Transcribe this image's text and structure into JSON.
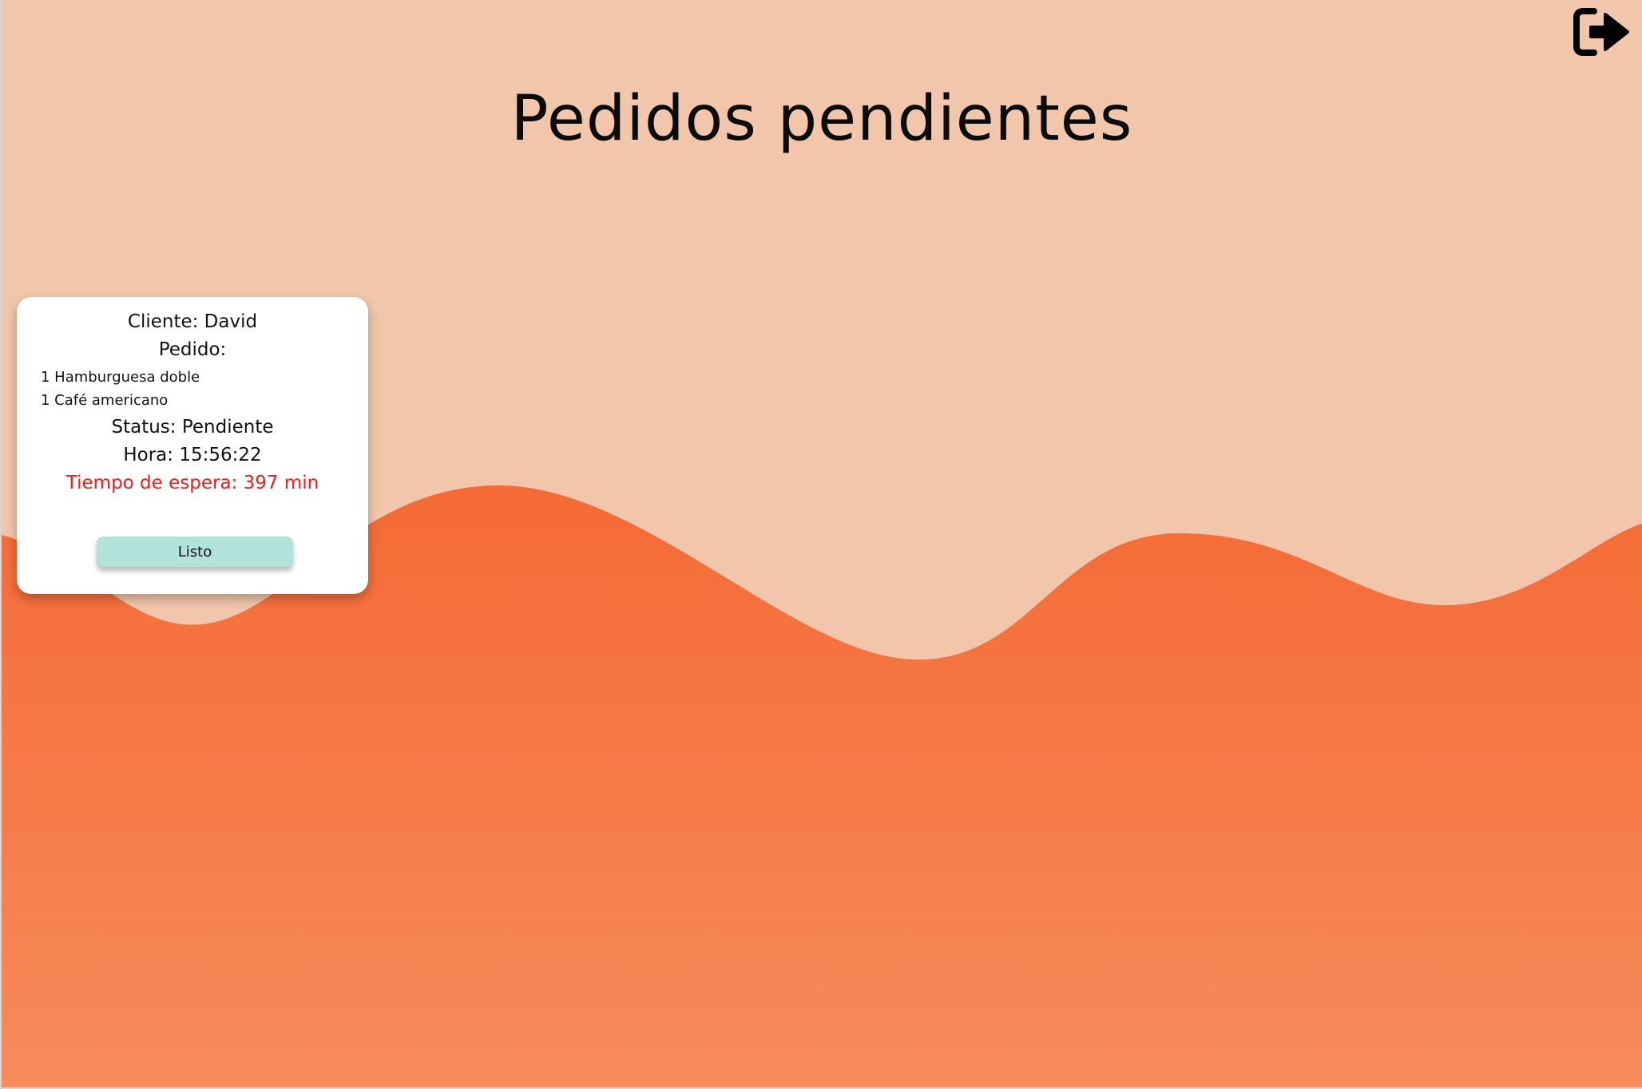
{
  "colors": {
    "background_top": "#f2c6aa",
    "wave_top": "#f56a35",
    "wave_bottom": "#f78b5c",
    "wait_text": "#f01c1c",
    "button": "#b2e2d9"
  },
  "header": {
    "title": "Pedidos pendientes",
    "logout_icon": "sign-out-icon"
  },
  "orders": [
    {
      "client_line": "Cliente: David",
      "order_label": "Pedido:",
      "items": [
        "1 Hamburguesa doble",
        "1 Café americano"
      ],
      "status_line": "Status: Pendiente",
      "time_line": "Hora: 15:56:22",
      "wait_line": "Tiempo de espera: 397 min",
      "button_label": "Listo"
    }
  ]
}
